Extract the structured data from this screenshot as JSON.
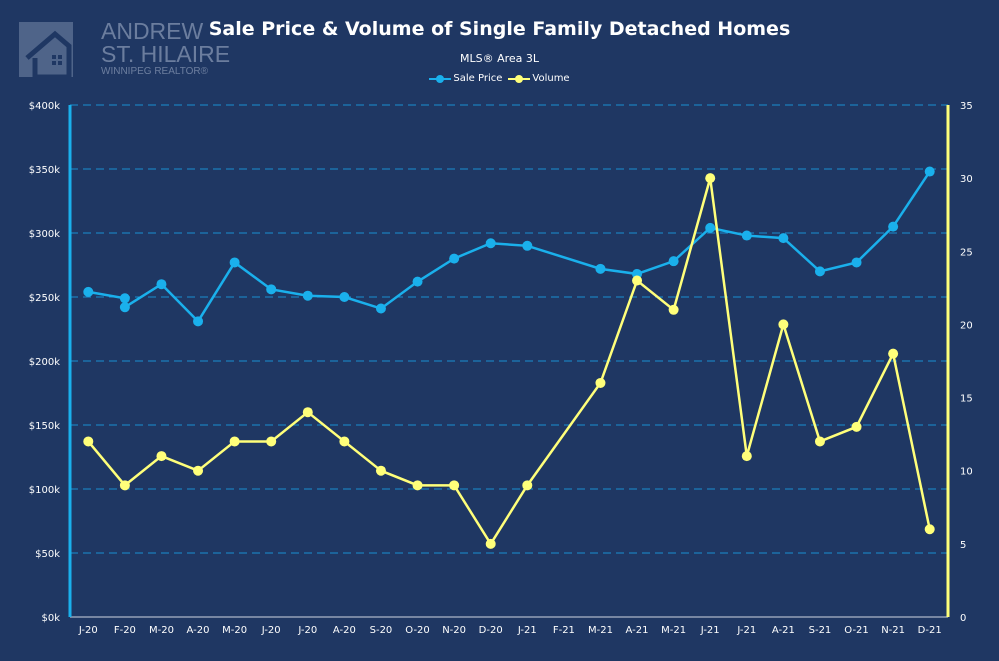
{
  "logo": {
    "line1": "ANDREW",
    "line2": "ST. HILAIRE",
    "line3": "WINNIPEG REALTOR®"
  },
  "chart_data": {
    "type": "line",
    "title": "Sale Price & Volume of Single Family Detached Homes",
    "subtitle": "MLS® Area 3L",
    "legend_position": "top",
    "categories": [
      "J-20",
      "F-20",
      "M-20",
      "A-20",
      "M-20",
      "J-20",
      "J-20",
      "A-20",
      "S-20",
      "O-20",
      "N-20",
      "D-20",
      "J-21",
      "F-21",
      "M-21",
      "A-21",
      "M-21",
      "J-21",
      "J-21",
      "A-21",
      "S-21",
      "O-21",
      "N-21",
      "D-21"
    ],
    "series": [
      {
        "name": "Sale Price",
        "axis": "left",
        "color": "#1ab0ec",
        "points": [
          [
            0,
            254
          ],
          [
            1,
            249
          ],
          [
            1,
            242
          ],
          [
            2,
            260
          ],
          [
            3,
            231
          ],
          [
            4,
            277
          ],
          [
            5,
            256
          ],
          [
            6,
            251
          ],
          [
            7,
            250
          ],
          [
            8,
            241
          ],
          [
            9,
            262
          ],
          [
            10,
            280
          ],
          [
            11,
            292
          ],
          [
            12,
            290
          ],
          [
            14,
            272
          ],
          [
            15,
            268
          ],
          [
            16,
            278
          ],
          [
            17,
            304
          ],
          [
            18,
            298
          ],
          [
            19,
            296
          ],
          [
            20,
            270
          ],
          [
            21,
            277
          ],
          [
            22,
            305
          ],
          [
            23,
            348
          ]
        ]
      },
      {
        "name": "Volume",
        "axis": "right",
        "color": "#ffff7a",
        "points": [
          [
            0,
            12
          ],
          [
            1,
            9
          ],
          [
            2,
            11
          ],
          [
            3,
            10
          ],
          [
            4,
            12
          ],
          [
            5,
            12
          ],
          [
            6,
            14
          ],
          [
            7,
            12
          ],
          [
            8,
            10
          ],
          [
            9,
            9
          ],
          [
            10,
            9
          ],
          [
            11,
            5
          ],
          [
            12,
            9
          ],
          [
            14,
            16
          ],
          [
            15,
            23
          ],
          [
            16,
            21
          ],
          [
            17,
            30
          ],
          [
            18,
            11
          ],
          [
            19,
            20
          ],
          [
            20,
            12
          ],
          [
            21,
            13
          ],
          [
            22,
            18
          ],
          [
            23,
            6
          ]
        ]
      }
    ],
    "y_left": {
      "min": 0,
      "max": 400,
      "ticks": [
        "$0k",
        "$50k",
        "$100k",
        "$150k",
        "$200k",
        "$250k",
        "$300k",
        "$350k",
        "$400k"
      ],
      "unit": "thousands $"
    },
    "y_right": {
      "min": 0,
      "max": 35,
      "ticks": [
        "0",
        "5",
        "10",
        "15",
        "20",
        "25",
        "30",
        "35"
      ]
    },
    "grid": true
  }
}
